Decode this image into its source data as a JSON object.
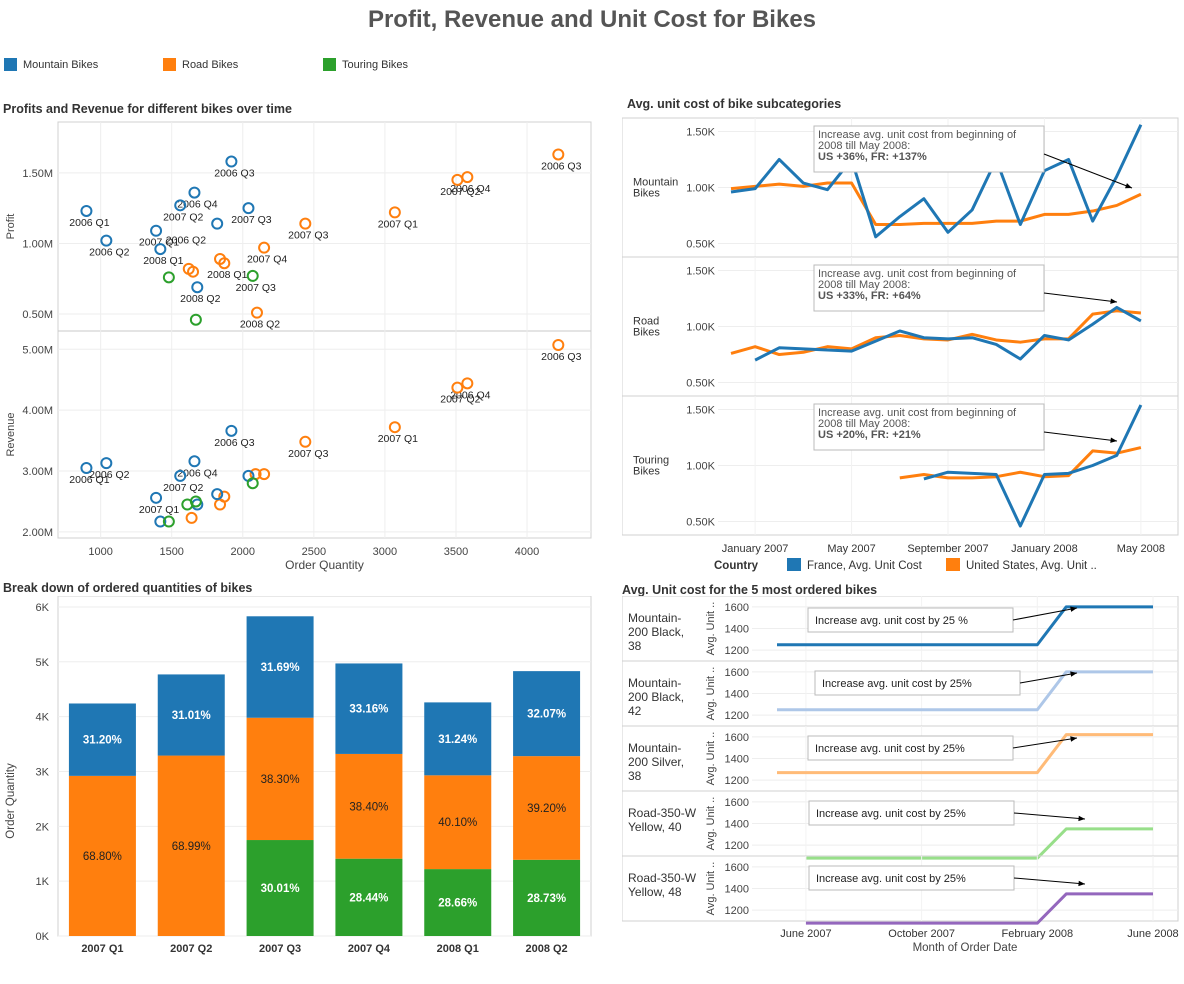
{
  "title": "Profit, Revenue and Unit Cost for Bikes",
  "legend": [
    {
      "label": "Mountain Bikes",
      "color": "#1f77b4"
    },
    {
      "label": "Road Bikes",
      "color": "#ff7f0e"
    },
    {
      "label": "Touring Bikes",
      "color": "#2ca02c"
    }
  ],
  "colors": {
    "mountain": "#1f77b4",
    "road": "#ff7f0e",
    "touring": "#2ca02c",
    "france": "#1f77b4",
    "us": "#ff7f0e"
  },
  "sections": {
    "scatter": "Profits and Revenue for different bikes over time",
    "unitcost": "Avg. unit cost of bike subcategories",
    "bars": "Break down of ordered quantities of bikes",
    "top5": "Avg. Unit cost for the 5 most ordered bikes"
  },
  "chart_data": [
    {
      "type": "scatter",
      "title": "Profits and Revenue for different bikes over time",
      "xlabel": "Order Quantity",
      "xlim": [
        700,
        4450
      ],
      "xticks": [
        1000,
        1500,
        2000,
        2500,
        3000,
        3500,
        4000
      ],
      "xtick_labels": [
        "1000",
        "1500",
        "2000",
        "2500",
        "3000",
        "3500",
        "4000"
      ],
      "panels": [
        {
          "ylabel": "Profit",
          "ylim": [
            0.38,
            1.86
          ],
          "yticks": [
            0.5,
            1.0,
            1.5
          ],
          "ytick_labels": [
            "0.50M",
            "1.00M",
            "1.50M"
          ],
          "points": [
            {
              "series": "mountain",
              "x": 1920,
              "y": 1.58,
              "label": "2006 Q3"
            },
            {
              "series": "mountain",
              "x": 1660,
              "y": 1.36,
              "label": "2006 Q4"
            },
            {
              "series": "mountain",
              "x": 1560,
              "y": 1.27,
              "label": "2007 Q2"
            },
            {
              "series": "mountain",
              "x": 2040,
              "y": 1.25,
              "label": "2007 Q3"
            },
            {
              "series": "mountain",
              "x": 900,
              "y": 1.23,
              "label": "2006 Q1"
            },
            {
              "series": "mountain",
              "x": 1820,
              "y": 1.14,
              "label": ""
            },
            {
              "series": "mountain",
              "x": 1390,
              "y": 1.09,
              "label": "2007 Q1"
            },
            {
              "series": "mountain",
              "x": 1040,
              "y": 1.02,
              "label": "2006 Q2"
            },
            {
              "series": "mountain",
              "x": 1420,
              "y": 0.96,
              "label": "2008 Q1"
            },
            {
              "series": "mountain",
              "x": 1680,
              "y": 0.69,
              "label": "2008 Q2"
            },
            {
              "series": "road",
              "x": 4220,
              "y": 1.63,
              "label": "2006 Q3"
            },
            {
              "series": "road",
              "x": 3580,
              "y": 1.47,
              "label": "2006 Q4"
            },
            {
              "series": "road",
              "x": 3510,
              "y": 1.45,
              "label": "2007 Q2"
            },
            {
              "series": "road",
              "x": 3070,
              "y": 1.22,
              "label": "2007 Q1"
            },
            {
              "series": "road",
              "x": 2440,
              "y": 1.14,
              "label": "2007 Q3"
            },
            {
              "series": "road",
              "x": 2150,
              "y": 0.97,
              "label": "2007 Q4"
            },
            {
              "series": "road",
              "x": 1840,
              "y": 0.89,
              "label": ""
            },
            {
              "series": "road",
              "x": 1870,
              "y": 0.86,
              "label": "2008 Q1"
            },
            {
              "series": "road",
              "x": 1620,
              "y": 0.82,
              "label": ""
            },
            {
              "series": "road",
              "x": 1650,
              "y": 0.8,
              "label": ""
            },
            {
              "series": "road",
              "x": 2100,
              "y": 0.51,
              "label": "2008 Q2"
            },
            {
              "series": "touring",
              "x": 1480,
              "y": 0.76,
              "label": ""
            },
            {
              "series": "touring",
              "x": 2070,
              "y": 0.77,
              "label": "2007 Q3"
            },
            {
              "series": "touring",
              "x": 1670,
              "y": 0.46,
              "label": ""
            }
          ],
          "extra_labels": [
            {
              "text": "2006 Q2",
              "x": 1600,
              "y": 1.0
            }
          ]
        },
        {
          "ylabel": "Revenue",
          "ylim": [
            1.9,
            5.3
          ],
          "yticks": [
            2.0,
            3.0,
            4.0,
            5.0
          ],
          "ytick_labels": [
            "2.00M",
            "3.00M",
            "4.00M",
            "5.00M"
          ],
          "points": [
            {
              "series": "road",
              "x": 4220,
              "y": 5.07,
              "label": "2006 Q3"
            },
            {
              "series": "road",
              "x": 3580,
              "y": 4.44,
              "label": "2006 Q4"
            },
            {
              "series": "road",
              "x": 3510,
              "y": 4.37,
              "label": "2007 Q2"
            },
            {
              "series": "road",
              "x": 3070,
              "y": 3.72,
              "label": "2007 Q1"
            },
            {
              "series": "road",
              "x": 2440,
              "y": 3.48,
              "label": "2007 Q3"
            },
            {
              "series": "road",
              "x": 2090,
              "y": 2.95,
              "label": ""
            },
            {
              "series": "road",
              "x": 2150,
              "y": 2.95,
              "label": ""
            },
            {
              "series": "road",
              "x": 1870,
              "y": 2.58,
              "label": ""
            },
            {
              "series": "road",
              "x": 1840,
              "y": 2.45,
              "label": ""
            },
            {
              "series": "road",
              "x": 1640,
              "y": 2.23,
              "label": ""
            },
            {
              "series": "mountain",
              "x": 1920,
              "y": 3.66,
              "label": "2006 Q3"
            },
            {
              "series": "mountain",
              "x": 1660,
              "y": 3.16,
              "label": "2006 Q4"
            },
            {
              "series": "mountain",
              "x": 1040,
              "y": 3.13,
              "label": "2006 Q2"
            },
            {
              "series": "mountain",
              "x": 900,
              "y": 3.05,
              "label": "2006 Q1"
            },
            {
              "series": "mountain",
              "x": 1560,
              "y": 2.92,
              "label": "2007 Q2"
            },
            {
              "series": "mountain",
              "x": 2040,
              "y": 2.92,
              "label": ""
            },
            {
              "series": "mountain",
              "x": 1820,
              "y": 2.62,
              "label": ""
            },
            {
              "series": "mountain",
              "x": 1390,
              "y": 2.56,
              "label": "2007 Q1"
            },
            {
              "series": "mountain",
              "x": 1680,
              "y": 2.45,
              "label": ""
            },
            {
              "series": "mountain",
              "x": 1420,
              "y": 2.17,
              "label": ""
            },
            {
              "series": "touring",
              "x": 1670,
              "y": 2.5,
              "label": ""
            },
            {
              "series": "touring",
              "x": 1610,
              "y": 2.45,
              "label": ""
            },
            {
              "series": "touring",
              "x": 2070,
              "y": 2.8,
              "label": ""
            },
            {
              "series": "touring",
              "x": 1480,
              "y": 2.17,
              "label": ""
            }
          ],
          "extra_labels": []
        }
      ]
    },
    {
      "type": "line",
      "title": "Avg. unit cost of bike subcategories",
      "x": [
        "Dec 2006",
        "Jan 2007",
        "Feb 2007",
        "Mar 2007",
        "Apr 2007",
        "May 2007",
        "Jun 2007",
        "Jul 2007",
        "Aug 2007",
        "Sep 2007",
        "Oct 2007",
        "Nov 2007",
        "Dec 2007",
        "Jan 2008",
        "Feb 2008",
        "Mar 2008",
        "Apr 2008",
        "May 2008",
        "Jun 2008"
      ],
      "xtick_labels": [
        "January 2007",
        "May 2007",
        "September 2007",
        "January 2008",
        "May 2008"
      ],
      "xtick_index": [
        1,
        5,
        9,
        13,
        17
      ],
      "legend_title": "Country",
      "series_names": [
        "France, Avg. Unit Cost",
        "United States, Avg. Unit .."
      ],
      "yticks": [
        500,
        1000,
        1500
      ],
      "ytick_labels": [
        "0.50K",
        "1.00K",
        "1.50K"
      ],
      "ylim": [
        380,
        1620
      ],
      "rows": [
        {
          "label": "Mountain Bikes",
          "france": [
            960,
            990,
            1250,
            1040,
            980,
            1250,
            560,
            740,
            900,
            600,
            800,
            1250,
            670,
            1150,
            1250,
            700,
            1100,
            1560
          ],
          "us": [
            990,
            1010,
            1030,
            1010,
            1040,
            1040,
            670,
            670,
            680,
            680,
            680,
            700,
            700,
            760,
            760,
            790,
            840,
            940
          ],
          "france_start": 0,
          "us_start": 0,
          "note": [
            "Increase avg. unit cost from beginning of",
            "2008 till May 2008:",
            "US +36%, FR: +137%"
          ]
        },
        {
          "label": "Road Bikes",
          "france": [
            700,
            810,
            800,
            790,
            780,
            870,
            960,
            900,
            890,
            900,
            840,
            710,
            920,
            880,
            1020,
            1170,
            1050
          ],
          "us": [
            760,
            820,
            750,
            770,
            820,
            800,
            900,
            920,
            890,
            880,
            930,
            880,
            860,
            890,
            890,
            1110,
            1140,
            1120
          ],
          "france_start": 1,
          "us_start": 0,
          "note": [
            "Increase avg. unit cost from beginning of",
            "2008 till May 2008:",
            "US +33%, FR: +64%"
          ]
        },
        {
          "label": "Touring Bikes",
          "france": [
            880,
            940,
            930,
            920,
            460,
            920,
            930,
            1000,
            1090,
            1540
          ],
          "us": [
            890,
            920,
            890,
            890,
            900,
            940,
            900,
            910,
            1130,
            1110,
            1160
          ],
          "france_start": 8,
          "us_start": 7,
          "note": [
            "Increase avg. unit cost from beginning of",
            "2008 till May 2008:",
            "US +20%, FR: +21%"
          ]
        }
      ]
    },
    {
      "type": "bar",
      "title": "Break down of ordered quantities of bikes",
      "ylabel": "Order Quantity",
      "ylim": [
        0,
        6200
      ],
      "yticks": [
        0,
        1000,
        2000,
        3000,
        4000,
        5000,
        6000
      ],
      "ytick_labels": [
        "0K",
        "1K",
        "2K",
        "3K",
        "4K",
        "5K",
        "6K"
      ],
      "categories": [
        "2007 Q1",
        "2007 Q2",
        "2007 Q3",
        "2007 Q4",
        "2008 Q1",
        "2008 Q2"
      ],
      "series": [
        {
          "name": "Touring Bikes",
          "key": "touring",
          "values": [
            0,
            0,
            1750,
            1410,
            1220,
            1390
          ],
          "labels": [
            "",
            "",
            "30.01%",
            "28.44%",
            "28.66%",
            "28.73%"
          ]
        },
        {
          "name": "Road Bikes",
          "key": "road",
          "values": [
            2920,
            3290,
            2230,
            1910,
            1710,
            1890
          ],
          "labels": [
            "68.80%",
            "68.99%",
            "38.30%",
            "38.40%",
            "40.10%",
            "39.20%"
          ]
        },
        {
          "name": "Mountain Bikes",
          "key": "mountain",
          "values": [
            1320,
            1480,
            1850,
            1650,
            1330,
            1550
          ],
          "labels": [
            "31.20%",
            "31.01%",
            "31.69%",
            "33.16%",
            "31.24%",
            "32.07%"
          ]
        }
      ]
    },
    {
      "type": "line",
      "title": "Avg. Unit cost for the 5 most ordered bikes",
      "xlabel": "Month of Order Date",
      "ylabel": "Avg. Unit ..",
      "x": [
        "May 2007",
        "Jun 2007",
        "Jul 2007",
        "Aug 2007",
        "Sep 2007",
        "Oct 2007",
        "Nov 2007",
        "Dec 2007",
        "Jan 2008",
        "Feb 2008",
        "Mar 2008",
        "Apr 2008",
        "May 2008",
        "Jun 2008"
      ],
      "xtick_labels": [
        "June 2007",
        "October 2007",
        "February 2008",
        "June 2008"
      ],
      "xtick_index": [
        1,
        5,
        9,
        13
      ],
      "yticks": [
        1200,
        1400,
        1600
      ],
      "ytick_labels": [
        "1200",
        "1400",
        "1600"
      ],
      "ylim": [
        1100,
        1700
      ],
      "rows": [
        {
          "label": [
            "Mountain-",
            "200 Black,",
            "38"
          ],
          "color": "#1f77b4",
          "start": 0,
          "values": [
            1250,
            1250,
            1250,
            1250,
            1250,
            1250,
            1250,
            1250,
            1250,
            1250,
            1600,
            1600,
            1600,
            1600
          ],
          "note": "Increase avg. unit cost by 25 %"
        },
        {
          "label": [
            "Mountain-",
            "200 Black,",
            "42"
          ],
          "color": "#aec7e8",
          "start": 0,
          "values": [
            1250,
            1250,
            1250,
            1250,
            1250,
            1250,
            1250,
            1250,
            1250,
            1250,
            1600,
            1600,
            1600,
            1600
          ],
          "note": "Increase avg. unit cost by 25%"
        },
        {
          "label": [
            "Mountain-",
            "200 Silver,",
            "38"
          ],
          "color": "#ffbb78",
          "start": 0,
          "values": [
            1270,
            1270,
            1270,
            1270,
            1270,
            1270,
            1270,
            1270,
            1270,
            1270,
            1620,
            1620,
            1620,
            1620
          ],
          "note": "Increase avg. unit cost by 25%"
        },
        {
          "label": [
            "Road-350-W",
            "Yellow, 40"
          ],
          "color": "#98df8a",
          "start": 1,
          "values": [
            1080,
            1080,
            1080,
            1080,
            1080,
            1080,
            1080,
            1080,
            1080,
            1350,
            1350,
            1350,
            1350
          ],
          "note": "Increase avg. unit cost by 25%"
        },
        {
          "label": [
            "Road-350-W",
            "Yellow, 48"
          ],
          "color": "#9467bd",
          "start": 1,
          "values": [
            1080,
            1080,
            1080,
            1080,
            1080,
            1080,
            1080,
            1080,
            1080,
            1350,
            1350,
            1350,
            1350
          ],
          "note": "Increase avg. unit cost by 25%"
        }
      ]
    }
  ]
}
